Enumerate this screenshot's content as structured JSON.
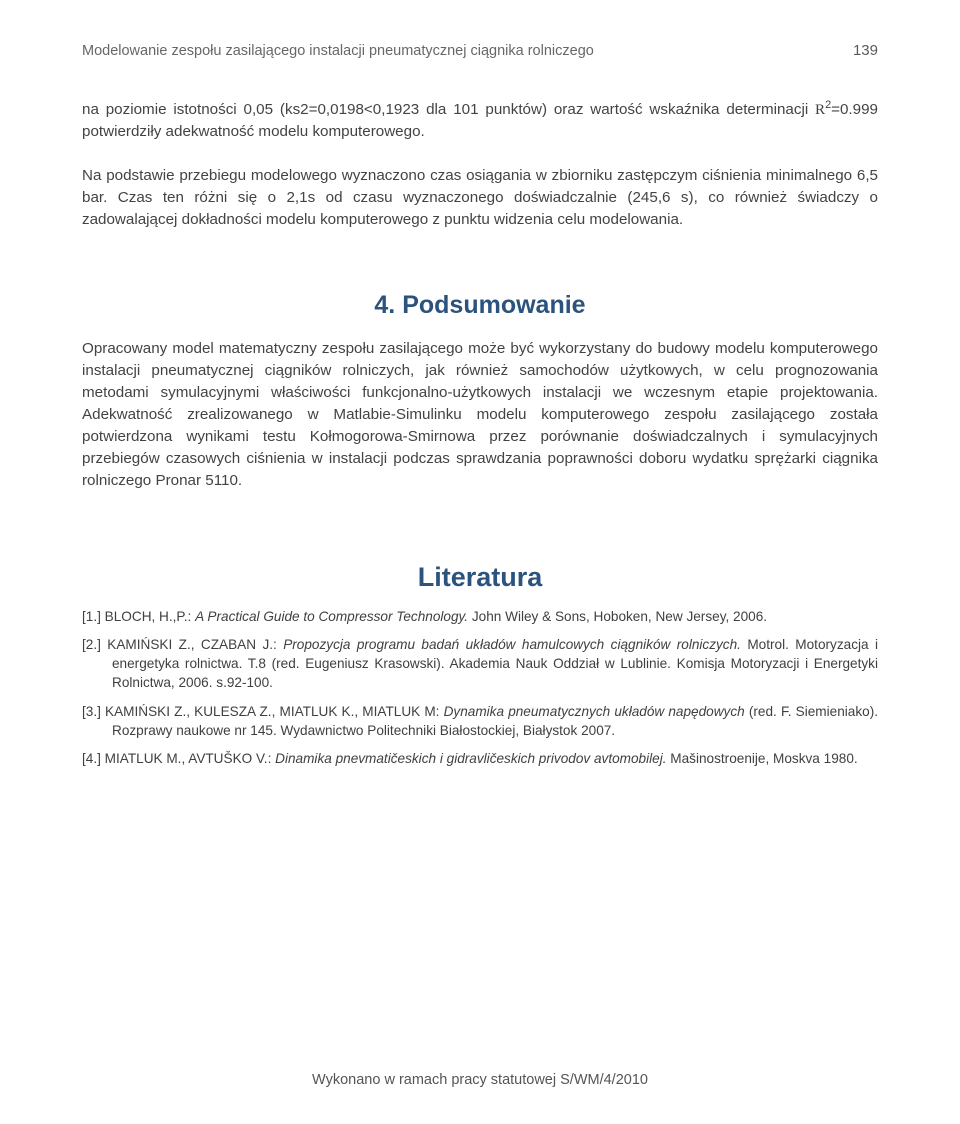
{
  "header": {
    "running_title": "Modelowanie zespołu zasilającego instalacji pneumatycznej ciągnika rolniczego",
    "page_number": "139"
  },
  "paragraphs": {
    "p1_a": "na poziomie istotności 0,05 (ks2=0,0198<0,1923 dla 101 punktów) oraz wartość wskaźnika determinacji ",
    "p1_r": "R",
    "p1_sup": "2",
    "p1_b": "=0.999 potwierdziły adekwatność modelu komputerowego.",
    "p2": "Na podstawie przebiegu modelowego wyznaczono czas osiągania w zbiorniku zastępczym ciśnienia minimalnego 6,5 bar. Czas ten różni się o 2,1s od czasu wyznaczonego doświadczalnie (245,6 s), co również świadczy o zadowalającej dokładności modelu komputerowego z punktu widzenia celu modelowania.",
    "p3": "Opracowany model matematyczny zespołu zasilającego może być wykorzystany do budowy modelu komputerowego instalacji pneumatycznej ciągników rolniczych, jak również samochodów użytkowych, w celu prognozowania metodami symulacyjnymi właściwości funkcjonalno-użytkowych instalacji we wczesnym etapie projektowania. Adekwatność zrealizowanego w Matlabie-Simulinku modelu komputerowego zespołu zasilającego została potwierdzona wynikami testu Kołmogorowa-Smirnowa przez porównanie doświadczalnych i symulacyjnych przebiegów czasowych ciśnienia w instalacji podczas sprawdzania poprawności doboru wydatku sprężarki ciągnika rolniczego Pronar 5110."
  },
  "headings": {
    "section4": "4. Podsumowanie",
    "literature": "Literatura"
  },
  "refs": {
    "r1_num": "[1.] ",
    "r1_auth": "BLOCH, H.,P.: ",
    "r1_title": "A Practical Guide to Compressor Technology.",
    "r1_rest": " John Wiley & Sons, Hoboken, New Jersey, 2006.",
    "r2_num": "[2.] ",
    "r2_auth": "KAMIŃSKI Z., CZABAN J.: ",
    "r2_title": "Propozycja programu badań układów hamulcowych ciągników rolniczych.",
    "r2_rest": " Motrol. Motoryzacja i energetyka rolnictwa. T.8 (red. Eugeniusz Krasowski). Akademia Nauk Oddział w Lublinie. Komisja Motoryzacji i Energetyki Rolnictwa, 2006. s.92-100.",
    "r3_num": "[3.] ",
    "r3_auth": "KAMIŃSKI Z., KULESZA Z., MIATLUK K., MIATLUK M: ",
    "r3_title": "Dynamika pneumatycznych układów napędowych",
    "r3_rest": " (red. F. Siemieniako). Rozprawy naukowe nr 145. Wydawnictwo Politechniki Białostockiej, Białystok 2007.",
    "r4_num": "[4.] ",
    "r4_auth": "MIATLUK M., AVTUŠKO V.: ",
    "r4_title": "Dinamika pnevmatičeskich i gidravličeskich privodov avtomobilej.",
    "r4_rest": " Mašinostroenije, Moskva 1980."
  },
  "footer": {
    "note": "Wykonano w ramach pracy statutowej S/WM/4/2010"
  }
}
